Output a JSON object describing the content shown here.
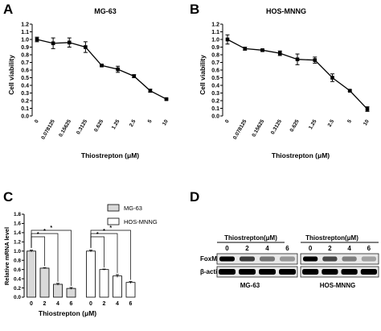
{
  "figure": {
    "panels": [
      "A",
      "B",
      "C",
      "D"
    ]
  },
  "chart_data": [
    {
      "type": "line",
      "panel": "A",
      "title": "MG-63",
      "xlabel": "Thiostrepton (μM)",
      "ylabel": "Cell viability",
      "categories": [
        "0",
        "0.078125",
        "0.15625",
        "0.3125",
        "0.625",
        "1.25",
        "2.5",
        "5",
        "10"
      ],
      "values": [
        1.0,
        0.95,
        0.96,
        0.9,
        0.66,
        0.61,
        0.52,
        0.33,
        0.22
      ],
      "errors": [
        0.03,
        0.07,
        0.06,
        0.07,
        0.01,
        0.04,
        0.02,
        0.02,
        0.01
      ],
      "yticks": [
        "0.0",
        "0.1",
        "0.2",
        "0.3",
        "0.4",
        "0.5",
        "0.6",
        "0.7",
        "0.8",
        "0.9",
        "1.0",
        "1.1",
        "1.2"
      ],
      "ylim": [
        0,
        1.2
      ]
    },
    {
      "type": "line",
      "panel": "B",
      "title": "HOS-MNNG",
      "xlabel": "Thiostrepton (μM)",
      "ylabel": "Cell viability",
      "categories": [
        "0",
        "0.078125",
        "0.15625",
        "0.3125",
        "0.625",
        "1.25",
        "2.5",
        "5",
        "10"
      ],
      "values": [
        1.0,
        0.88,
        0.86,
        0.82,
        0.74,
        0.73,
        0.5,
        0.33,
        0.09
      ],
      "errors": [
        0.06,
        0.02,
        0.01,
        0.03,
        0.07,
        0.04,
        0.05,
        0.01,
        0.03
      ],
      "yticks": [
        "0.0",
        "0.1",
        "0.2",
        "0.3",
        "0.4",
        "0.5",
        "0.6",
        "0.7",
        "0.8",
        "0.9",
        "1.0",
        "1.1",
        "1.2"
      ],
      "ylim": [
        0,
        1.2
      ]
    },
    {
      "type": "bar",
      "panel": "C",
      "xlabel": "Thiostrepton (μM)",
      "ylabel": "Relative mRNA level",
      "categories": [
        "0",
        "2",
        "4",
        "6"
      ],
      "series": [
        {
          "name": "MG-63",
          "values": [
            1.0,
            0.63,
            0.28,
            0.19
          ],
          "errors": [
            0.02,
            0.01,
            0.02,
            0.02
          ],
          "color": "#d9d9d9"
        },
        {
          "name": "HOS-MNNG",
          "values": [
            1.0,
            0.6,
            0.46,
            0.32
          ],
          "errors": [
            0.02,
            0.01,
            0.03,
            0.02
          ],
          "color": "#ffffff"
        }
      ],
      "significance": "*",
      "yticks": [
        "0.0",
        "0.2",
        "0.4",
        "0.6",
        "0.8",
        "1.0",
        "1.2",
        "1.4",
        "1.6",
        "1.8"
      ],
      "ylim": [
        0,
        1.8
      ]
    }
  ],
  "western_blot": {
    "panel": "D",
    "treatment_label": "Thiostrepton(μM)",
    "lanes": [
      "0",
      "2",
      "4",
      "6"
    ],
    "rows": [
      "FoxM1",
      "β-actin"
    ],
    "cell_lines": [
      "MG-63",
      "HOS-MNNG"
    ],
    "foxm1_intensity": [
      [
        1.0,
        0.75,
        0.5,
        0.35
      ],
      [
        1.0,
        0.7,
        0.45,
        0.3
      ]
    ],
    "actin_intensity": [
      [
        1.0,
        1.0,
        1.0,
        1.0
      ],
      [
        1.0,
        1.0,
        1.0,
        1.0
      ]
    ]
  }
}
